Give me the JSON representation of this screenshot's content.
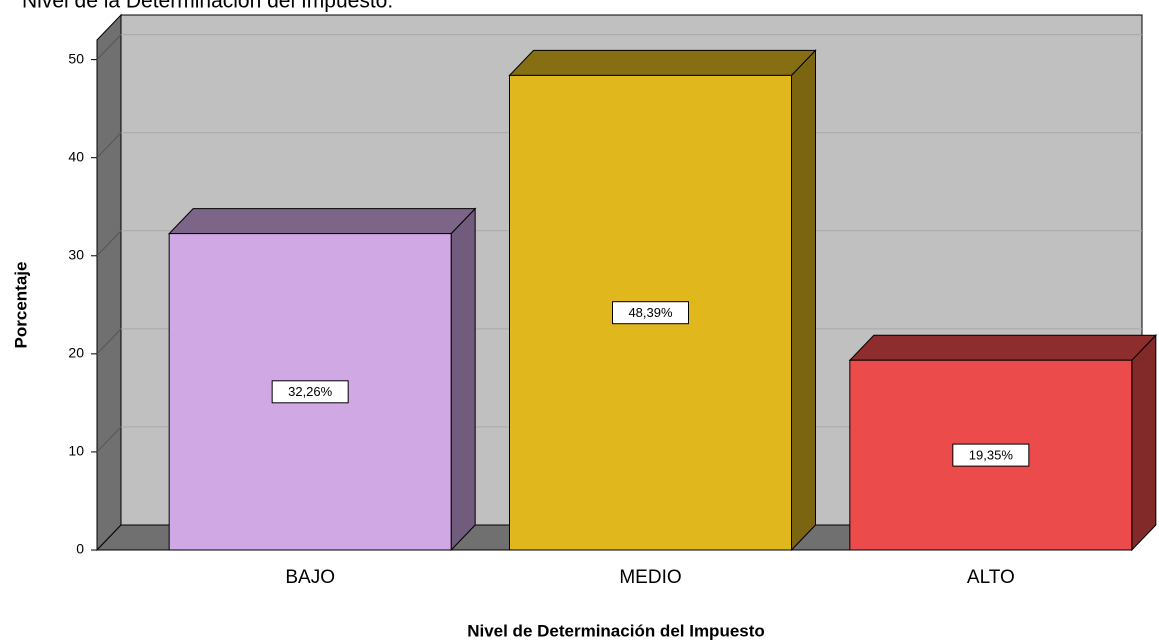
{
  "chart_data": {
    "type": "bar3d",
    "title": "Nivel de la Determinación del Impuesto:",
    "x_label": "Nivel de Determinación del Impuesto",
    "y_label": "Porcentaje",
    "categories": [
      "BAJO",
      "MEDIO",
      "ALTO"
    ],
    "values": [
      32.26,
      48.39,
      19.35
    ],
    "value_labels": [
      "32,26%",
      "48,39%",
      "19,35%"
    ],
    "colors": [
      "#cfa8e4",
      "#e0b81e",
      "#ec4b4b"
    ],
    "ylim": [
      0,
      52
    ],
    "yticks": [
      0,
      10,
      20,
      30,
      40,
      50
    ],
    "grid": true
  }
}
